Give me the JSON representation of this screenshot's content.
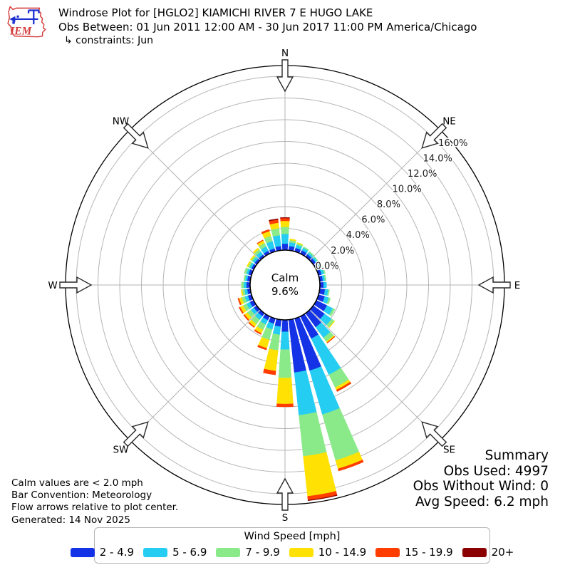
{
  "header": {
    "title": "Windrose Plot for [HGLO2] KIAMICHI RIVER 7 E HUGO LAKE",
    "subtitle": "Obs Between: 01 Jun 2011 12:00 AM - 30 Jun 2017 11:00 PM America/Chicago",
    "constraints": "↳ constraints: Jun",
    "logo_text": "IEM"
  },
  "plot": {
    "compass_labels": [
      "N",
      "NE",
      "E",
      "SE",
      "S",
      "SW",
      "W",
      "NW"
    ],
    "ring_labels": [
      "0.0%",
      "2.0%",
      "4.0%",
      "6.0%",
      "8.0%",
      "10.0%",
      "12.0%",
      "14.0%",
      "16.0%"
    ],
    "calm": {
      "label": "Calm",
      "value": "9.6%"
    }
  },
  "notes": [
    "Calm values are < 2.0 mph",
    "Bar Convention: Meteorology",
    "Flow arrows relative to plot center."
  ],
  "generated": "Generated: 14 Nov 2025",
  "summary": {
    "title": "Summary",
    "lines": [
      "Obs Used: 4997",
      "Obs Without Wind: 0",
      "Avg Speed: 6.2 mph"
    ]
  },
  "legend": {
    "title": "Wind Speed [mph]",
    "bins": [
      {
        "label": "2 - 4.9",
        "color": "#1433e6"
      },
      {
        "label": "5 - 6.9",
        "color": "#25cdf2"
      },
      {
        "label": "7 - 9.9",
        "color": "#8aea8a"
      },
      {
        "label": "10 - 14.9",
        "color": "#ffe203"
      },
      {
        "label": "15 - 19.9",
        "color": "#ff3d00"
      },
      {
        "label": "20+",
        "color": "#8b0000"
      }
    ]
  },
  "chart_data": {
    "type": "windrose",
    "units": "percent frequency of wind observations",
    "bar_convention": "Meteorology (bars point in direction wind blows from)",
    "direction_step_deg": 10,
    "speed_bins_mph": [
      "2 - 4.9",
      "5 - 6.9",
      "7 - 9.9",
      "10 - 14.9",
      "15 - 19.9",
      "20+"
    ],
    "bin_colors": [
      "#1433e6",
      "#25cdf2",
      "#8aea8a",
      "#ffe203",
      "#ff3d00",
      "#8b0000"
    ],
    "calm_percent": 9.6,
    "ring_percent": [
      0,
      2,
      4,
      6,
      8,
      10,
      12,
      14,
      16
    ],
    "rmax_percent": 17,
    "directions": [
      {
        "deg": 0,
        "values": [
          0.6,
          0.9,
          0.65,
          0.55,
          0.25,
          0.05
        ]
      },
      {
        "deg": 10,
        "values": [
          0.4,
          0.35,
          0.2,
          0.1,
          0.0,
          0.0
        ]
      },
      {
        "deg": 20,
        "values": [
          0.35,
          0.3,
          0.15,
          0.05,
          0.0,
          0.0
        ]
      },
      {
        "deg": 30,
        "values": [
          0.35,
          0.25,
          0.1,
          0.0,
          0.0,
          0.0
        ]
      },
      {
        "deg": 40,
        "values": [
          0.3,
          0.2,
          0.1,
          0.0,
          0.0,
          0.0
        ]
      },
      {
        "deg": 50,
        "values": [
          0.3,
          0.2,
          0.05,
          0.0,
          0.0,
          0.0
        ]
      },
      {
        "deg": 60,
        "values": [
          0.3,
          0.2,
          0.1,
          0.0,
          0.0,
          0.0
        ]
      },
      {
        "deg": 70,
        "values": [
          0.3,
          0.25,
          0.1,
          0.0,
          0.0,
          0.0
        ]
      },
      {
        "deg": 80,
        "values": [
          0.3,
          0.2,
          0.1,
          0.0,
          0.0,
          0.0
        ]
      },
      {
        "deg": 90,
        "values": [
          0.35,
          0.25,
          0.0,
          0.0,
          0.0,
          0.0
        ]
      },
      {
        "deg": 100,
        "values": [
          0.5,
          0.3,
          0.1,
          0.0,
          0.0,
          0.0
        ]
      },
      {
        "deg": 110,
        "values": [
          0.6,
          0.4,
          0.15,
          0.0,
          0.0,
          0.0
        ]
      },
      {
        "deg": 120,
        "values": [
          1.1,
          0.6,
          0.2,
          0.0,
          0.0,
          0.0
        ]
      },
      {
        "deg": 130,
        "values": [
          1.3,
          0.8,
          0.3,
          0.05,
          0.0,
          0.0
        ]
      },
      {
        "deg": 140,
        "values": [
          1.6,
          1.2,
          0.45,
          0.1,
          0.05,
          0.0
        ]
      },
      {
        "deg": 150,
        "values": [
          2.3,
          3.7,
          1.3,
          0.25,
          0.15,
          0.0
        ]
      },
      {
        "deg": 160,
        "values": [
          5.0,
          4.2,
          4.4,
          0.8,
          0.2,
          0.0
        ]
      },
      {
        "deg": 170,
        "values": [
          4.9,
          3.95,
          3.8,
          3.7,
          0.35,
          0.05
        ]
      },
      {
        "deg": 180,
        "values": [
          1.1,
          1.65,
          2.6,
          2.4,
          0.25,
          0.0
        ]
      },
      {
        "deg": 190,
        "values": [
          0.65,
          0.75,
          1.45,
          1.9,
          0.35,
          0.0
        ]
      },
      {
        "deg": 200,
        "values": [
          0.5,
          0.55,
          1.0,
          0.8,
          0.15,
          0.0
        ]
      },
      {
        "deg": 210,
        "values": [
          0.4,
          0.45,
          0.55,
          0.35,
          0.1,
          0.0
        ]
      },
      {
        "deg": 220,
        "values": [
          0.35,
          0.4,
          0.5,
          0.3,
          0.08,
          0.0
        ]
      },
      {
        "deg": 230,
        "values": [
          0.35,
          0.35,
          0.4,
          0.3,
          0.1,
          0.0
        ]
      },
      {
        "deg": 240,
        "values": [
          0.4,
          0.35,
          0.35,
          0.3,
          0.1,
          0.0
        ]
      },
      {
        "deg": 250,
        "values": [
          0.35,
          0.3,
          0.3,
          0.25,
          0.1,
          0.0
        ]
      },
      {
        "deg": 260,
        "values": [
          0.3,
          0.25,
          0.2,
          0.1,
          0.0,
          0.0
        ]
      },
      {
        "deg": 270,
        "values": [
          0.35,
          0.25,
          0.2,
          0.0,
          0.0,
          0.0
        ]
      },
      {
        "deg": 280,
        "values": [
          0.3,
          0.2,
          0.1,
          0.0,
          0.0,
          0.0
        ]
      },
      {
        "deg": 290,
        "values": [
          0.3,
          0.2,
          0.2,
          0.0,
          0.0,
          0.0
        ]
      },
      {
        "deg": 300,
        "values": [
          0.25,
          0.2,
          0.15,
          0.1,
          0.0,
          0.0
        ]
      },
      {
        "deg": 310,
        "values": [
          0.25,
          0.25,
          0.15,
          0.1,
          0.0,
          0.0
        ]
      },
      {
        "deg": 320,
        "values": [
          0.25,
          0.35,
          0.25,
          0.15,
          0.0,
          0.0
        ]
      },
      {
        "deg": 330,
        "values": [
          0.3,
          0.45,
          0.35,
          0.25,
          0.05,
          0.0
        ]
      },
      {
        "deg": 340,
        "values": [
          0.3,
          0.7,
          0.5,
          0.45,
          0.15,
          0.0
        ]
      },
      {
        "deg": 350,
        "values": [
          0.4,
          1.0,
          0.65,
          0.5,
          0.3,
          0.07
        ]
      }
    ]
  }
}
